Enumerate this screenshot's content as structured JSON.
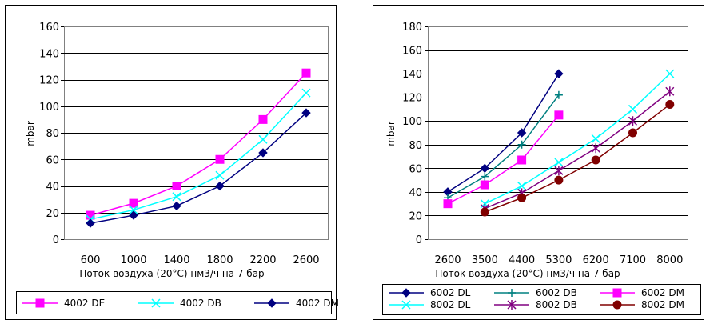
{
  "chart_data": [
    {
      "type": "line",
      "ylabel": "mbar",
      "xlabel": "Поток воздуха (20°C) нм3/ч на 7 бар",
      "ylim": [
        0,
        160
      ],
      "yticks": [
        "0",
        "20",
        "40",
        "60",
        "80",
        "100",
        "120",
        "140",
        "160"
      ],
      "categories": [
        "600",
        "1000",
        "1400",
        "1800",
        "2200",
        "2600"
      ],
      "grid": "horizontal",
      "legend_position": "bottom",
      "series": [
        {
          "name": "4002 DE",
          "color": "#ff00ff",
          "marker": "square",
          "points": [
            [
              0,
              18
            ],
            [
              1,
              27
            ],
            [
              2,
              40
            ],
            [
              3,
              60
            ],
            [
              4,
              90
            ],
            [
              5,
              125
            ]
          ]
        },
        {
          "name": "4002 DB",
          "color": "#00ffff",
          "marker": "x",
          "points": [
            [
              0,
              15
            ],
            [
              1,
              22
            ],
            [
              2,
              32
            ],
            [
              3,
              48
            ],
            [
              4,
              75
            ],
            [
              5,
              110
            ]
          ]
        },
        {
          "name": "4002 DM",
          "color": "#000080",
          "marker": "diamond",
          "points": [
            [
              0,
              12
            ],
            [
              1,
              18
            ],
            [
              2,
              25
            ],
            [
              3,
              40
            ],
            [
              4,
              65
            ],
            [
              5,
              95
            ]
          ]
        }
      ]
    },
    {
      "type": "line",
      "ylabel": "mbar",
      "xlabel": "Поток воздуха (20°C) нм3/ч на 7 бар",
      "ylim": [
        0,
        180
      ],
      "yticks": [
        "0",
        "20",
        "40",
        "60",
        "80",
        "100",
        "120",
        "140",
        "160",
        "180"
      ],
      "categories": [
        "2600",
        "3500",
        "4400",
        "5300",
        "6200",
        "7100",
        "8000"
      ],
      "grid": "horizontal",
      "legend_position": "bottom",
      "series": [
        {
          "name": "6002 DL",
          "color": "#000080",
          "marker": "diamond",
          "points": [
            [
              0,
              40
            ],
            [
              1,
              60
            ],
            [
              2,
              90
            ],
            [
              3,
              140
            ]
          ]
        },
        {
          "name": "6002 DB",
          "color": "#008080",
          "marker": "plus",
          "points": [
            [
              0,
              35
            ],
            [
              1,
              53
            ],
            [
              2,
              80
            ],
            [
              3,
              122
            ]
          ]
        },
        {
          "name": "6002 DM",
          "color": "#ff00ff",
          "marker": "square",
          "points": [
            [
              0,
              30
            ],
            [
              1,
              46
            ],
            [
              2,
              67
            ],
            [
              3,
              105
            ]
          ]
        },
        {
          "name": "8002 DL",
          "color": "#00ffff",
          "marker": "x",
          "points": [
            [
              1,
              30
            ],
            [
              2,
              45
            ],
            [
              3,
              65
            ],
            [
              4,
              85
            ],
            [
              5,
              110
            ],
            [
              6,
              140
            ]
          ]
        },
        {
          "name": "8002 DB",
          "color": "#800080",
          "marker": "star",
          "points": [
            [
              1,
              26
            ],
            [
              2,
              39
            ],
            [
              3,
              58
            ],
            [
              4,
              77
            ],
            [
              5,
              100
            ],
            [
              6,
              125
            ]
          ]
        },
        {
          "name": "8002 DM",
          "color": "#800000",
          "marker": "circle",
          "points": [
            [
              1,
              23
            ],
            [
              2,
              35
            ],
            [
              3,
              50
            ],
            [
              4,
              67
            ],
            [
              5,
              90
            ],
            [
              6,
              114
            ]
          ]
        }
      ]
    }
  ]
}
